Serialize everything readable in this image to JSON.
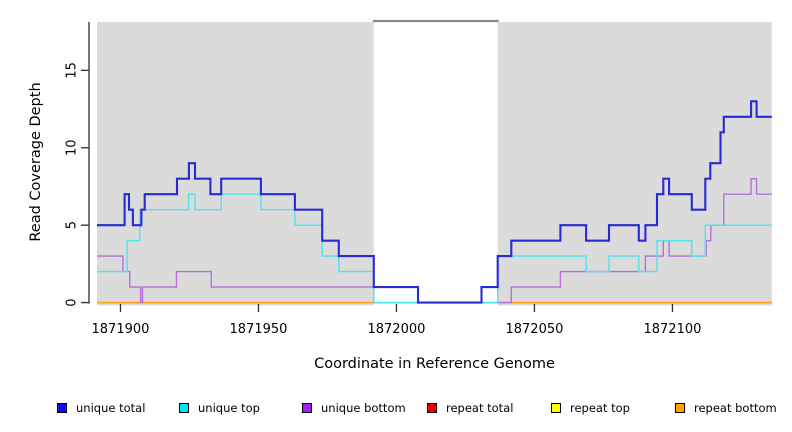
{
  "chart_data": {
    "type": "line",
    "subtype": "step-coverage-plot",
    "title": "",
    "x_axis": {
      "label": "Coordinate in Reference Genome",
      "range": [
        1871891.5,
        1872136
      ],
      "ticks": [
        {
          "value": 1871900,
          "label": "1871900"
        },
        {
          "value": 1871950,
          "label": "1871950"
        },
        {
          "value": 1872000,
          "label": "1872000"
        },
        {
          "value": 1872050,
          "label": "1872050"
        },
        {
          "value": 1872100,
          "label": "1872100"
        }
      ]
    },
    "y_axis": {
      "label": "Read Coverage Depth",
      "range": [
        0,
        18.12
      ],
      "ticks": [
        {
          "value": 0,
          "label": "0"
        },
        {
          "value": 5,
          "label": "5"
        },
        {
          "value": 10,
          "label": "10"
        },
        {
          "value": 15,
          "label": "15"
        }
      ]
    },
    "grid": "off",
    "shade_color": "#DBDBDB",
    "shaded_regions": [
      {
        "x0": 1871891.5,
        "x1": 1871991.8
      },
      {
        "x0": 1872036.7,
        "x1": 1872136
      }
    ],
    "gap_top_line": {
      "x0": 1871991.8,
      "x1": 1872036.7,
      "color": "#8A8A8A"
    },
    "series": [
      {
        "name": "unique total",
        "color": "#2929D6",
        "width": 2.1,
        "segments": [
          {
            "end": 1872136,
            "points": [
              [
                1871891.5,
                5
              ],
              [
                1871901.5,
                7
              ],
              [
                1871903.1,
                6
              ],
              [
                1871904.5,
                5
              ],
              [
                1871907.6,
                6
              ],
              [
                1871908.8,
                7
              ],
              [
                1871920.5,
                8
              ],
              [
                1871924.8,
                9
              ],
              [
                1871927.0,
                8
              ],
              [
                1871932.6,
                7
              ],
              [
                1871936.5,
                8
              ],
              [
                1871950.9,
                7
              ],
              [
                1871963.2,
                6
              ],
              [
                1871973.1,
                4
              ],
              [
                1871979.1,
                3
              ],
              [
                1871991.8,
                1
              ],
              [
                1872007.8,
                0
              ],
              [
                1872030.8,
                1
              ],
              [
                1872036.7,
                3
              ],
              [
                1872041.6,
                4
              ],
              [
                1872059.4,
                5
              ],
              [
                1872068.7,
                4
              ],
              [
                1872077.0,
                5
              ],
              [
                1872087.8,
                4
              ],
              [
                1872090.2,
                5
              ],
              [
                1872094.4,
                7
              ],
              [
                1872096.7,
                8
              ],
              [
                1872098.8,
                7
              ],
              [
                1872107.0,
                6
              ],
              [
                1872111.9,
                8
              ],
              [
                1872113.7,
                9
              ],
              [
                1872117.4,
                11
              ],
              [
                1872118.6,
                12
              ],
              [
                1872128.5,
                13
              ],
              [
                1872130.5,
                12
              ]
            ]
          }
        ]
      },
      {
        "name": "unique top",
        "color": "#4FE3EA",
        "width": 1.4,
        "segments": [
          {
            "end": 1872136,
            "points": [
              [
                1871891.5,
                2
              ],
              [
                1871902.4,
                4
              ],
              [
                1871907.0,
                6
              ],
              [
                1871924.7,
                7
              ],
              [
                1871927.0,
                6
              ],
              [
                1871936.5,
                7
              ],
              [
                1871950.9,
                6
              ],
              [
                1871963.2,
                5
              ],
              [
                1871973.1,
                3
              ],
              [
                1871979.1,
                2
              ],
              [
                1871991.8,
                0
              ],
              [
                1872036.7,
                3
              ],
              [
                1872068.7,
                2
              ],
              [
                1872077.0,
                3
              ],
              [
                1872087.8,
                2
              ],
              [
                1872094.4,
                4
              ],
              [
                1872107.0,
                3
              ],
              [
                1872111.9,
                5
              ]
            ]
          }
        ]
      },
      {
        "name": "unique bottom",
        "color": "#B570DA",
        "width": 1.4,
        "segments": [
          {
            "end": 1872136,
            "points": [
              [
                1871891.5,
                3
              ],
              [
                1871900.9,
                2
              ],
              [
                1871903.4,
                1
              ],
              [
                1871907.3,
                0
              ],
              [
                1871908.0,
                1
              ],
              [
                1871920.3,
                2
              ],
              [
                1871932.9,
                1
              ],
              [
                1871991.8,
                0
              ],
              [
                1872041.6,
                1
              ],
              [
                1872059.4,
                2
              ],
              [
                1872090.2,
                3
              ],
              [
                1872096.7,
                4
              ],
              [
                1872098.8,
                3
              ],
              [
                1872112.2,
                4
              ],
              [
                1872113.9,
                5
              ],
              [
                1872118.6,
                7
              ],
              [
                1872128.5,
                8
              ],
              [
                1872130.5,
                7
              ]
            ]
          }
        ]
      },
      {
        "name": "repeat total",
        "color": "#C4587B",
        "width": 1.3,
        "segments": [
          {
            "end": 1872136,
            "points": [
              [
                1871891.5,
                0
              ]
            ]
          }
        ]
      },
      {
        "name": "repeat top",
        "color": "#F2F200",
        "width": 1.5,
        "segments": [
          {
            "end": 1871991.8,
            "points": [
              [
                1871891.5,
                0
              ]
            ]
          },
          {
            "end": 1872136,
            "points": [
              [
                1872036.7,
                0
              ]
            ]
          }
        ]
      },
      {
        "name": "repeat bottom",
        "color": "#FFA41A",
        "width": 1.8,
        "segments": [
          {
            "end": 1871991.8,
            "points": [
              [
                1871891.5,
                0
              ]
            ]
          },
          {
            "end": 1872136,
            "points": [
              [
                1872036.7,
                0
              ]
            ]
          }
        ]
      }
    ],
    "legend": {
      "position": "bottom",
      "items": [
        {
          "label": "unique total",
          "color": "#0D0DF2"
        },
        {
          "label": "unique top",
          "color": "#00E4F0"
        },
        {
          "label": "unique bottom",
          "color": "#A020F0"
        },
        {
          "label": "repeat total",
          "color": "#EE0000"
        },
        {
          "label": "repeat top",
          "color": "#FFFF00"
        },
        {
          "label": "repeat bottom",
          "color": "#FFA500"
        }
      ]
    }
  }
}
